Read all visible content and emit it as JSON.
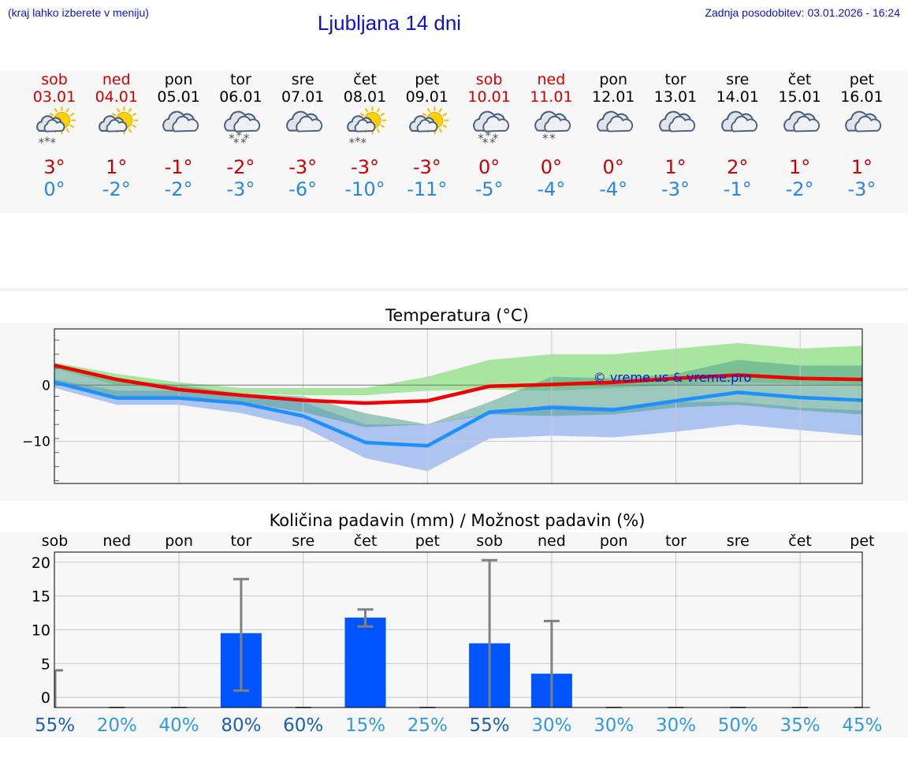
{
  "header": {
    "menu_hint": "(kraj lahko izberete v meniju)",
    "title": "Ljubljana 14 dni",
    "last_update": "Zadnja posodobitev: 03.01.2026 - 16:24"
  },
  "colors": {
    "link_blue": "#1010d0",
    "weekend_red": "#d00000",
    "max_temp": "#c80000",
    "min_temp": "#2888e0",
    "temp_line_max": "#f00000",
    "temp_line_min": "#1e90ff",
    "band_max": "#a8e6a0",
    "band_min": "#aec4f0",
    "precip_bar": "#0055ff",
    "whisker": "#808080"
  },
  "days": [
    {
      "name": "sob",
      "date": "03.01",
      "weekend": true,
      "icon": "sun-cloud-snow-icon",
      "max": "3°",
      "min": "0°"
    },
    {
      "name": "ned",
      "date": "04.01",
      "weekend": true,
      "icon": "sun-cloud-icon",
      "max": "1°",
      "min": "-2°"
    },
    {
      "name": "pon",
      "date": "05.01",
      "weekend": false,
      "icon": "cloud-icon",
      "max": "-1°",
      "min": "-2°"
    },
    {
      "name": "tor",
      "date": "06.01",
      "weekend": false,
      "icon": "cloud-snow-icon",
      "max": "-2°",
      "min": "-3°"
    },
    {
      "name": "sre",
      "date": "07.01",
      "weekend": false,
      "icon": "cloud-icon",
      "max": "-3°",
      "min": "-6°"
    },
    {
      "name": "čet",
      "date": "08.01",
      "weekend": false,
      "icon": "sun-cloud-snow-icon",
      "max": "-3°",
      "min": "-10°"
    },
    {
      "name": "pet",
      "date": "09.01",
      "weekend": false,
      "icon": "sun-cloud-icon",
      "max": "-3°",
      "min": "-11°"
    },
    {
      "name": "sob",
      "date": "10.01",
      "weekend": true,
      "icon": "cloud-snow-icon",
      "max": "0°",
      "min": "-5°"
    },
    {
      "name": "ned",
      "date": "11.01",
      "weekend": true,
      "icon": "cloud-light-snow-icon",
      "max": "0°",
      "min": "-4°"
    },
    {
      "name": "pon",
      "date": "12.01",
      "weekend": false,
      "icon": "cloud-icon",
      "max": "0°",
      "min": "-4°"
    },
    {
      "name": "tor",
      "date": "13.01",
      "weekend": false,
      "icon": "cloud-icon",
      "max": "1°",
      "min": "-3°"
    },
    {
      "name": "sre",
      "date": "14.01",
      "weekend": false,
      "icon": "cloud-icon",
      "max": "2°",
      "min": "-1°"
    },
    {
      "name": "čet",
      "date": "15.01",
      "weekend": false,
      "icon": "cloud-icon",
      "max": "1°",
      "min": "-2°"
    },
    {
      "name": "pet",
      "date": "16.01",
      "weekend": false,
      "icon": "cloud-icon",
      "max": "1°",
      "min": "-3°"
    }
  ],
  "chart_data": [
    {
      "type": "line",
      "title": "Temperatura (°C)",
      "watermark": "© vreme.us & vreme.pro",
      "ylim": [
        -17.5,
        10
      ],
      "y_ticks": [
        0,
        -10
      ],
      "y_tick_labels": [
        "0",
        "−10"
      ],
      "grid": true,
      "x": [
        0,
        1,
        2,
        3,
        4,
        5,
        6,
        7,
        8,
        9,
        10,
        11,
        12,
        13
      ],
      "series": [
        {
          "values": [
            3.5,
            1,
            -0.8,
            -1.8,
            -2.7,
            -3.2,
            -2.8,
            -0.2,
            0.1,
            0.5,
            1.2,
            1.8,
            1.2,
            1
          ],
          "band_low": [
            3,
            0,
            -0.5,
            -1.5,
            -1.8,
            -1.8,
            -1,
            -0.8,
            -1,
            -0.5,
            0,
            0.5,
            0.2,
            0
          ],
          "band_high": [
            4,
            2,
            0.5,
            -0.5,
            -0.5,
            -0.5,
            1.5,
            4.5,
            5.5,
            5.5,
            6.5,
            7.5,
            6.5,
            7
          ]
        },
        {
          "values": [
            0.5,
            -2.3,
            -2.3,
            -3.2,
            -5.5,
            -10.2,
            -10.8,
            -4.8,
            -4,
            -4.4,
            -2.8,
            -1.3,
            -2.2,
            -2.7
          ],
          "band_low": [
            -0.5,
            -3.5,
            -3.5,
            -5,
            -7.5,
            -13,
            -15.3,
            -9.5,
            -9,
            -9.3,
            -8.3,
            -7,
            -8,
            -9
          ],
          "band_high": [
            1,
            -1,
            -1,
            -1.5,
            -3,
            -7,
            -7,
            -5,
            -3.5,
            -4,
            -3,
            -3,
            -4,
            -4.5
          ],
          "mid_high": [
            3.5,
            1,
            0,
            -1.5,
            -2,
            -5,
            -7,
            -3,
            1.5,
            1.2,
            2,
            4.5,
            3.5,
            3.5
          ],
          "mid_low": [
            0.5,
            -2,
            -2,
            -3,
            -4.8,
            -7.5,
            -7,
            -5.2,
            -5.5,
            -5.2,
            -4,
            -3.5,
            -4.5,
            -5.2
          ]
        }
      ]
    },
    {
      "type": "bar",
      "title": "Količina padavin (mm) / Možnost padavin (%)",
      "categories": [
        "sob",
        "ned",
        "pon",
        "tor",
        "sre",
        "čet",
        "pet",
        "sob",
        "ned",
        "pon",
        "tor",
        "sre",
        "čet",
        "pet"
      ],
      "values": [
        0,
        0,
        0,
        9.5,
        0,
        11.8,
        0,
        8,
        3.5,
        0,
        0,
        0,
        0,
        0
      ],
      "whisker_low": [
        0,
        0,
        0,
        1,
        0,
        10.5,
        0,
        0,
        0,
        0,
        0,
        0,
        0,
        0
      ],
      "whisker_high": [
        4,
        0,
        0,
        17.5,
        0,
        13,
        0,
        20.3,
        11.3,
        0,
        0,
        0,
        0,
        0
      ],
      "y_ticks": [
        0,
        5,
        10,
        15,
        20
      ],
      "ylim": [
        -1.5,
        21.5
      ],
      "grid": true,
      "probabilities": [
        "55%",
        "20%",
        "40%",
        "80%",
        "60%",
        "15%",
        "25%",
        "55%",
        "30%",
        "30%",
        "30%",
        "50%",
        "35%",
        "45%"
      ],
      "probability_colors": [
        "#1a5fb0",
        "#3399dd",
        "#3399dd",
        "#1a5fb0",
        "#1a5fb0",
        "#3399dd",
        "#3399dd",
        "#1a5fb0",
        "#3399dd",
        "#3399dd",
        "#3399dd",
        "#3399dd",
        "#3399dd",
        "#3399dd"
      ]
    }
  ]
}
